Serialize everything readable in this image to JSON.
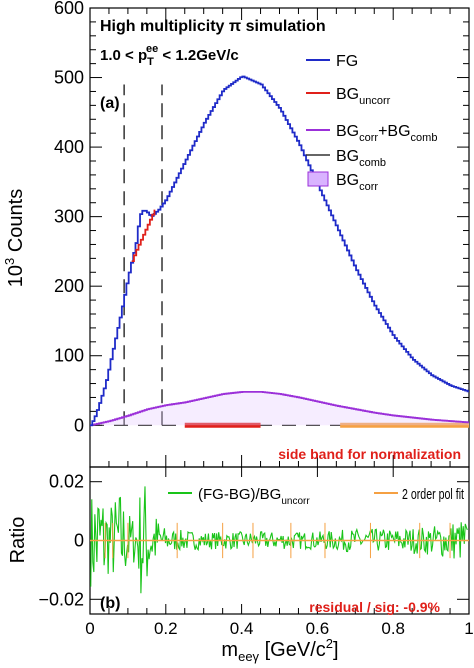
{
  "chart_data": [
    {
      "type": "line",
      "panel": "(a)",
      "ylabel": "10",
      "ylabel_sup": "3",
      "ylabel_rest": " Counts",
      "xlim": [
        0,
        1
      ],
      "ylim": [
        -60,
        600
      ],
      "yticks": [
        0,
        100,
        200,
        300,
        400,
        500,
        600
      ],
      "title_line1": "High multiplicity π  simulation",
      "title_line2_pre": "1.0 < p",
      "title_line2_sub": "T",
      "title_line2_sup": "ee",
      "title_line2_post": " < 1.2GeV/c",
      "legend_position": "top-right",
      "legend": [
        {
          "name": "FG",
          "sub": "",
          "color": "#1f2bc8",
          "style": "line"
        },
        {
          "name": "BG",
          "sub": "uncorr",
          "color": "#e0201a",
          "style": "line"
        },
        {
          "name": "BG",
          "sub": "corr",
          "name2": "+BG",
          "sub2": "comb",
          "color": "#9b30d9",
          "style": "line"
        },
        {
          "name": "BG",
          "sub": "comb",
          "color": "#333333",
          "style": "line"
        },
        {
          "name": "BG",
          "sub": "corr",
          "color": "#9b30d9",
          "fill": "#d9b3ff",
          "style": "box"
        }
      ],
      "series": [
        {
          "name": "FG",
          "color": "#1f2bc8",
          "x": [
            0.0,
            0.01,
            0.02,
            0.04,
            0.06,
            0.08,
            0.1,
            0.12,
            0.13,
            0.14,
            0.15,
            0.16,
            0.18,
            0.2,
            0.25,
            0.3,
            0.35,
            0.4,
            0.45,
            0.5,
            0.55,
            0.6,
            0.65,
            0.7,
            0.75,
            0.8,
            0.85,
            0.9,
            0.95,
            1.0
          ],
          "y": [
            0,
            10,
            25,
            60,
            110,
            160,
            215,
            262,
            302,
            310,
            306,
            300,
            310,
            325,
            380,
            435,
            482,
            502,
            490,
            455,
            405,
            345,
            285,
            225,
            172,
            128,
            95,
            72,
            57,
            48
          ]
        },
        {
          "name": "BGuncorr",
          "color": "#e0201a",
          "x": [
            0.11,
            0.12,
            0.13,
            0.14,
            0.15,
            0.16,
            0.17
          ],
          "y": [
            236,
            250,
            262,
            274,
            286,
            298,
            310
          ]
        },
        {
          "name": "BGcorr+BGcomb",
          "color": "#9b30d9",
          "x": [
            0.0,
            0.05,
            0.1,
            0.15,
            0.2,
            0.25,
            0.3,
            0.35,
            0.4,
            0.45,
            0.5,
            0.55,
            0.6,
            0.65,
            0.7,
            0.75,
            0.8,
            0.85,
            0.9,
            0.95,
            1.0
          ],
          "y": [
            0,
            6,
            14,
            23,
            29,
            33,
            39,
            45,
            48,
            48,
            45,
            40,
            34,
            28,
            23,
            18,
            14,
            11,
            8,
            6,
            4
          ]
        }
      ],
      "vlines_dashed_x": [
        0.09,
        0.19
      ],
      "zero_line": "dashed",
      "sideband_bars": [
        {
          "x": [
            0.25,
            0.45
          ],
          "color": "#e0201a"
        },
        {
          "x": [
            0.66,
            1.0
          ],
          "color": "#f5a042"
        }
      ],
      "annotation": "side band for normalization",
      "annotation_color": "#e0201a"
    },
    {
      "type": "line",
      "panel": "(b)",
      "ylabel": "Ratio",
      "xlabel": "m",
      "xlabel_sub": "eeγ",
      "xlabel_mid": " [GeV/c",
      "xlabel_sup": "2",
      "xlabel_end": "]",
      "xlim": [
        0,
        1
      ],
      "xticks": [
        "0",
        "0.2",
        "0.4",
        "0.6",
        "0.8",
        "1"
      ],
      "ylim": [
        -0.025,
        0.025
      ],
      "yticks": [
        "0.02",
        "0",
        "−0.02"
      ],
      "legend": [
        {
          "name": "(FG-BG)/BG",
          "sub": "uncorr",
          "color": "#19c419"
        },
        {
          "name": "2 order pol fit",
          "color": "#f5a042"
        }
      ],
      "series_ratio_envelope": {
        "x": [
          0.0,
          0.02,
          0.05,
          0.08,
          0.1,
          0.12,
          0.14,
          0.16,
          0.2,
          0.3,
          0.4,
          0.5,
          0.6,
          0.7,
          0.8,
          0.9,
          1.0
        ],
        "amplitude": [
          0.015,
          0.022,
          0.012,
          0.018,
          0.01,
          0.008,
          0.025,
          0.012,
          0.004,
          0.003,
          0.003,
          0.003,
          0.003,
          0.004,
          0.004,
          0.005,
          0.008
        ]
      },
      "fit": {
        "x": [
          0,
          1
        ],
        "y": [
          0,
          0
        ],
        "color": "#f5a042"
      },
      "zero_line": "dashed",
      "annotation": "residual / sig: -0.9%",
      "annotation_color": "#e0201a"
    }
  ]
}
